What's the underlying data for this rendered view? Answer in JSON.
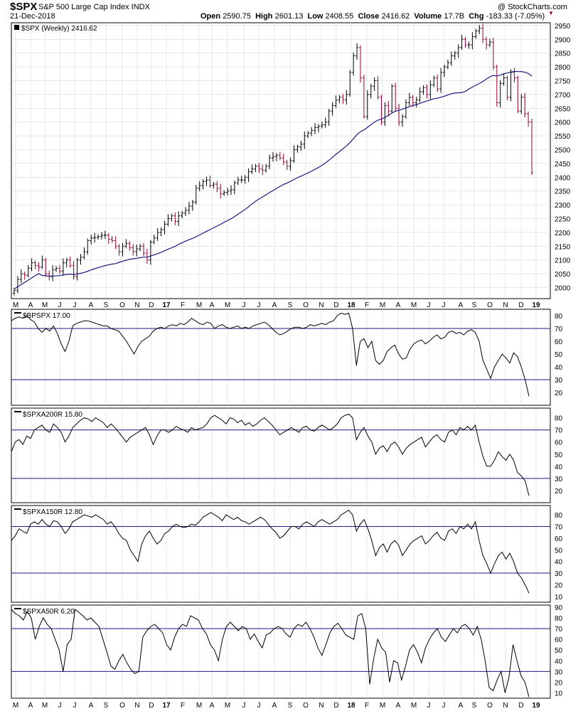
{
  "header": {
    "ticker": "$SPX",
    "name": "S&P 500 Large Cap Index INDX",
    "date": "21-Dec-2018",
    "open_label": "Open",
    "open": "2590.75",
    "high_label": "High",
    "high": "2601.13",
    "low_label": "Low",
    "low": "2408.55",
    "close_label": "Close",
    "close": "2416.62",
    "volume_label": "Volume",
    "volume": "17.7B",
    "chg_label": "Chg",
    "chg": "-183.33 (-7.05%)",
    "brand": "@ StockCharts.com"
  },
  "colors": {
    "price_up": "#000000",
    "price_down": "#990033",
    "ma_line": "#1a1a80",
    "ref_lines": "#1a1a80",
    "indicator": "#000000",
    "grid": "#cfcfcf"
  },
  "x_axis": [
    "M",
    "A",
    "M",
    "J",
    "J",
    "A",
    "S",
    "O",
    "N",
    "D",
    "17",
    "F",
    "M",
    "A",
    "M",
    "J",
    "J",
    "A",
    "S",
    "O",
    "N",
    "D",
    "18",
    "F",
    "M",
    "A",
    "M",
    "J",
    "J",
    "A",
    "S",
    "O",
    "N",
    "D",
    "19"
  ],
  "chart_data": [
    {
      "type": "ohlc",
      "legend": "$SPX (Weekly) 2416.62",
      "ylim": [
        1960,
        2960
      ],
      "yticks": [
        2000,
        2050,
        2100,
        2150,
        2200,
        2250,
        2300,
        2350,
        2400,
        2450,
        2500,
        2550,
        2600,
        2650,
        2700,
        2750,
        2800,
        2850,
        2900,
        2950
      ],
      "close": [
        1990,
        2030,
        2050,
        2045,
        2070,
        2090,
        2080,
        2075,
        2100,
        2050,
        2040,
        2065,
        2070,
        2060,
        2090,
        2100,
        2080,
        2040,
        2100,
        2110,
        2130,
        2170,
        2180,
        2182,
        2185,
        2190,
        2190,
        2175,
        2170,
        2150,
        2130,
        2150,
        2160,
        2145,
        2130,
        2140,
        2150,
        2125,
        2100,
        2165,
        2180,
        2200,
        2210,
        2230,
        2250,
        2260,
        2240,
        2260,
        2270,
        2280,
        2295,
        2310,
        2360,
        2370,
        2385,
        2390,
        2370,
        2375,
        2360,
        2340,
        2345,
        2350,
        2355,
        2380,
        2390,
        2390,
        2400,
        2420,
        2430,
        2440,
        2430,
        2425,
        2440,
        2470,
        2475,
        2480,
        2470,
        2455,
        2440,
        2460,
        2500,
        2510,
        2520,
        2550,
        2560,
        2570,
        2580,
        2585,
        2590,
        2600,
        2640,
        2660,
        2680,
        2690,
        2680,
        2700,
        2780,
        2840,
        2870,
        2760,
        2620,
        2700,
        2730,
        2750,
        2690,
        2600,
        2660,
        2640,
        2730,
        2650,
        2600,
        2620,
        2670,
        2690,
        2670,
        2680,
        2710,
        2725,
        2700,
        2735,
        2760,
        2720,
        2780,
        2800,
        2815,
        2840,
        2850,
        2870,
        2900,
        2880,
        2880,
        2910,
        2930,
        2940,
        2900,
        2880,
        2890,
        2800,
        2670,
        2740,
        2760,
        2690,
        2780,
        2760,
        2640,
        2690,
        2630,
        2600,
        2416.62
      ],
      "ma": {
        "start": 1995,
        "end": 2790,
        "note_late": [
          2800,
          2790,
          2780,
          2770,
          2760,
          2750,
          2740,
          2730,
          2720
        ]
      }
    },
    {
      "type": "line",
      "legend": "$BPSPX 17.00",
      "ylim": [
        10,
        85
      ],
      "yticks": [
        20,
        30,
        40,
        50,
        60,
        70,
        80
      ],
      "ref_lines": [
        70,
        30
      ],
      "values": [
        76,
        78,
        79,
        78,
        80,
        77,
        75,
        70,
        67,
        70,
        68,
        72,
        66,
        58,
        52,
        60,
        72,
        74,
        75,
        76,
        76,
        75,
        74,
        73,
        72,
        72,
        70,
        69,
        68,
        64,
        60,
        55,
        50,
        56,
        60,
        62,
        64,
        68,
        70,
        71,
        70,
        72,
        73,
        72,
        74,
        73,
        75,
        78,
        76,
        74,
        73,
        75,
        74,
        70,
        72,
        73,
        71,
        70,
        71,
        72,
        70,
        71,
        70,
        72,
        73,
        74,
        75,
        73,
        70,
        67,
        65,
        66,
        68,
        70,
        71,
        71,
        70,
        71,
        73,
        72,
        73,
        74,
        73,
        75,
        76,
        80,
        82,
        81,
        82,
        70,
        41,
        60,
        62,
        55,
        60,
        45,
        42,
        45,
        52,
        55,
        57,
        50,
        46,
        47,
        54,
        58,
        60,
        61,
        58,
        60,
        63,
        65,
        62,
        63,
        67,
        68,
        66,
        67,
        65,
        68,
        69,
        67,
        60,
        45,
        38,
        31,
        40,
        45,
        50,
        47,
        43,
        51,
        48,
        40,
        30,
        17
      ]
    },
    {
      "type": "line",
      "legend": "$SPXA200R 15.80",
      "ylim": [
        10,
        88
      ],
      "yticks": [
        20,
        30,
        40,
        50,
        60,
        70,
        80
      ],
      "ref_lines": [
        70,
        30
      ],
      "values": [
        52,
        60,
        62,
        58,
        65,
        63,
        70,
        72,
        74,
        70,
        68,
        75,
        72,
        68,
        60,
        65,
        72,
        75,
        78,
        80,
        79,
        77,
        80,
        78,
        76,
        72,
        75,
        72,
        68,
        64,
        60,
        64,
        66,
        68,
        70,
        72,
        66,
        58,
        65,
        70,
        70,
        68,
        70,
        73,
        71,
        70,
        68,
        72,
        70,
        71,
        72,
        75,
        80,
        82,
        80,
        78,
        75,
        80,
        79,
        76,
        78,
        74,
        76,
        73,
        75,
        78,
        80,
        77,
        74,
        70,
        66,
        68,
        70,
        72,
        70,
        68,
        72,
        73,
        70,
        69,
        72,
        74,
        72,
        70,
        72,
        75,
        80,
        82,
        83,
        80,
        62,
        68,
        72,
        65,
        60,
        50,
        55,
        57,
        52,
        58,
        60,
        56,
        50,
        55,
        58,
        60,
        62,
        64,
        56,
        60,
        64,
        66,
        62,
        60,
        68,
        70,
        66,
        72,
        70,
        73,
        70,
        74,
        60,
        48,
        40,
        40,
        45,
        52,
        48,
        45,
        50,
        45,
        35,
        32,
        28,
        15.8
      ]
    },
    {
      "type": "line",
      "legend": "$SPXA150R 12.80",
      "ylim": [
        5,
        88
      ],
      "yticks": [
        10,
        20,
        30,
        40,
        50,
        60,
        70,
        80
      ],
      "ref_lines": [
        70,
        30
      ],
      "values": [
        58,
        62,
        68,
        66,
        64,
        72,
        74,
        72,
        76,
        72,
        70,
        75,
        74,
        70,
        64,
        68,
        74,
        76,
        78,
        80,
        79,
        78,
        80,
        78,
        76,
        72,
        74,
        70,
        64,
        60,
        58,
        50,
        45,
        40,
        55,
        62,
        66,
        60,
        55,
        58,
        64,
        66,
        70,
        72,
        70,
        69,
        70,
        72,
        71,
        74,
        78,
        80,
        82,
        80,
        78,
        75,
        80,
        78,
        76,
        78,
        75,
        74,
        72,
        74,
        76,
        78,
        76,
        72,
        68,
        65,
        60,
        62,
        66,
        70,
        70,
        68,
        72,
        74,
        72,
        70,
        74,
        76,
        74,
        72,
        74,
        76,
        80,
        82,
        84,
        80,
        66,
        72,
        76,
        68,
        58,
        45,
        52,
        55,
        48,
        55,
        58,
        54,
        45,
        50,
        55,
        58,
        60,
        62,
        55,
        58,
        62,
        65,
        60,
        58,
        66,
        68,
        64,
        70,
        68,
        72,
        68,
        74,
        58,
        45,
        38,
        30,
        38,
        45,
        48,
        42,
        47,
        40,
        30,
        26,
        20,
        12.8
      ]
    },
    {
      "type": "line",
      "legend": "$SPXA50R 6.20",
      "ylim": [
        5,
        92
      ],
      "yticks": [
        10,
        20,
        30,
        40,
        50,
        60,
        70,
        80,
        90
      ],
      "ref_lines": [
        70,
        30
      ],
      "values": [
        88,
        84,
        82,
        78,
        86,
        80,
        60,
        72,
        80,
        74,
        70,
        60,
        50,
        30,
        55,
        60,
        88,
        85,
        82,
        78,
        80,
        76,
        72,
        60,
        48,
        35,
        32,
        40,
        46,
        38,
        32,
        28,
        30,
        62,
        68,
        72,
        74,
        70,
        66,
        55,
        50,
        62,
        70,
        74,
        72,
        82,
        80,
        78,
        70,
        65,
        55,
        50,
        40,
        60,
        72,
        76,
        72,
        68,
        72,
        70,
        60,
        65,
        58,
        52,
        64,
        66,
        70,
        72,
        70,
        65,
        62,
        70,
        74,
        72,
        76,
        70,
        62,
        52,
        45,
        55,
        66,
        72,
        75,
        70,
        64,
        62,
        60,
        82,
        84,
        70,
        18,
        42,
        60,
        52,
        48,
        20,
        40,
        38,
        22,
        35,
        50,
        55,
        48,
        38,
        52,
        60,
        66,
        70,
        62,
        58,
        64,
        70,
        66,
        72,
        74,
        70,
        64,
        72,
        60,
        40,
        15,
        12,
        22,
        30,
        10,
        25,
        55,
        40,
        26,
        20,
        6.2
      ]
    }
  ]
}
